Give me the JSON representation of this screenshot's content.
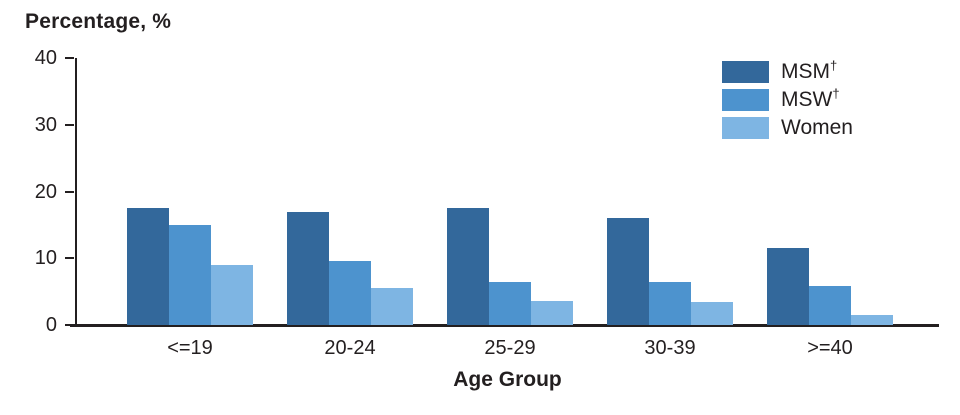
{
  "chart_data": {
    "type": "bar",
    "title": "Percentage, %",
    "xlabel": "Age Group",
    "ylabel": "Percentage, %",
    "ylim": [
      0,
      40
    ],
    "yticks": [
      0,
      10,
      20,
      30,
      40
    ],
    "grid": false,
    "legend_position": "top-right",
    "categories": [
      "<=19",
      "20-24",
      "25-29",
      "30-39",
      ">=40"
    ],
    "series": [
      {
        "name": "MSM",
        "sup": "†",
        "color": "#33689B",
        "values": [
          17.6,
          17.0,
          17.6,
          16.1,
          11.6
        ]
      },
      {
        "name": "MSW",
        "sup": "†",
        "color": "#4D93CE",
        "values": [
          15.0,
          9.6,
          6.5,
          6.4,
          5.9
        ]
      },
      {
        "name": "Women",
        "sup": "",
        "color": "#7EB5E3",
        "values": [
          9.0,
          5.6,
          3.6,
          3.4,
          1.5
        ]
      }
    ],
    "axis_color": "#231f20",
    "text_color": "#231f20"
  }
}
